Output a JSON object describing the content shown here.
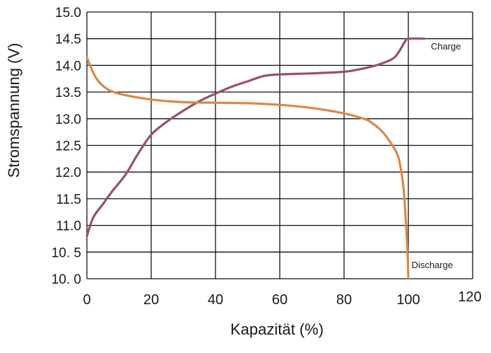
{
  "chart_data": {
    "type": "line",
    "xlabel": "Kapazität (%)",
    "ylabel": "Stromspannung (V)",
    "xlim": [
      0,
      120
    ],
    "ylim": [
      10.0,
      15.0
    ],
    "grid": true,
    "x_ticks": [
      0,
      20,
      40,
      60,
      80,
      100,
      120
    ],
    "x_tick_labels": [
      "0",
      "20",
      "40",
      "60",
      "80",
      "100",
      "120"
    ],
    "y_ticks": [
      10.0,
      10.5,
      11.0,
      11.5,
      12.0,
      12.5,
      13.0,
      13.5,
      14.0,
      14.5,
      15.0
    ],
    "y_tick_labels": [
      "10. 0",
      "10. 5",
      "11.0",
      "11.5",
      "12.0",
      "12.5",
      "13.0",
      "13.5",
      "14.0",
      "14.5",
      "15.0"
    ],
    "series": [
      {
        "name": "Charge",
        "color": "#98506f",
        "x": [
          0,
          2,
          5,
          8,
          12,
          16,
          20,
          25,
          30,
          35,
          40,
          45,
          50,
          55,
          60,
          70,
          80,
          85,
          90,
          95,
          97,
          99,
          100,
          105
        ],
        "y": [
          10.8,
          11.15,
          11.4,
          11.65,
          11.95,
          12.35,
          12.7,
          12.95,
          13.15,
          13.33,
          13.47,
          13.6,
          13.7,
          13.8,
          13.83,
          13.85,
          13.88,
          13.93,
          14.0,
          14.12,
          14.25,
          14.45,
          14.5,
          14.5
        ]
      },
      {
        "name": "Discharge",
        "color": "#d9894a",
        "x": [
          0,
          1,
          3,
          6,
          10,
          20,
          30,
          40,
          50,
          60,
          70,
          80,
          85,
          88,
          92,
          95,
          97,
          98.5,
          99.3,
          99.8,
          100
        ],
        "y": [
          14.15,
          14.0,
          13.75,
          13.57,
          13.47,
          13.36,
          13.31,
          13.3,
          13.29,
          13.26,
          13.2,
          13.1,
          13.02,
          12.95,
          12.75,
          12.5,
          12.25,
          11.7,
          11.0,
          10.4,
          10.0
        ]
      }
    ],
    "annotations": [
      {
        "text": "Charge",
        "x": 107,
        "y": 14.3
      },
      {
        "text": "Discharge",
        "x": 101,
        "y": 10.2
      }
    ]
  }
}
